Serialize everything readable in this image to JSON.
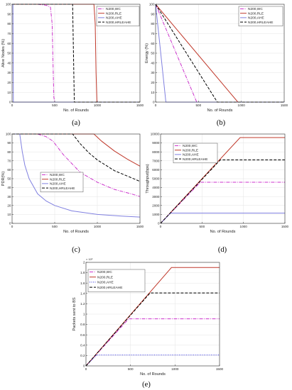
{
  "chart_data": [
    {
      "id": "a",
      "caption": "(a)",
      "type": "line",
      "xlabel": "No. of Rounds",
      "ylabel": "Alive Nodes (%)",
      "xlim": [
        0,
        1500
      ],
      "ylim": [
        0,
        100
      ],
      "xticks": [
        0,
        500,
        1000,
        1500
      ],
      "yticks": [
        0,
        10,
        20,
        30,
        40,
        50,
        60,
        70,
        80,
        90,
        100
      ],
      "legend_position": "top-right",
      "series": [
        {
          "name": "N200,WC",
          "color": "#cc33cc",
          "dash": "5,1.5,1,1.5",
          "points": [
            [
              0,
              100
            ],
            [
              300,
              100
            ],
            [
              400,
              99
            ],
            [
              450,
              97
            ],
            [
              470,
              80
            ],
            [
              480,
              40
            ],
            [
              490,
              5
            ],
            [
              500,
              0
            ],
            [
              1500,
              0
            ]
          ]
        },
        {
          "name": "N200,RLE",
          "color": "#c0392b",
          "dash": "",
          "points": [
            [
              0,
              100
            ],
            [
              960,
              100
            ],
            [
              975,
              80
            ],
            [
              985,
              30
            ],
            [
              995,
              0
            ],
            [
              1500,
              0
            ]
          ]
        },
        {
          "name": "N200,AHE",
          "color": "#8080e0",
          "dash": "",
          "points": [
            [
              0,
              100
            ],
            [
              10,
              100
            ],
            [
              15,
              0
            ],
            [
              1500,
              0
            ]
          ]
        },
        {
          "name": "N200,HRLEAHE",
          "color": "#000000",
          "dash": "4,2",
          "points": [
            [
              0,
              100
            ],
            [
              710,
              100
            ],
            [
              720,
              50
            ],
            [
              730,
              0
            ],
            [
              1500,
              0
            ]
          ]
        }
      ]
    },
    {
      "id": "b",
      "caption": "(b)",
      "type": "line",
      "xlabel": "No. of Rounds",
      "ylabel": "Energy (%)",
      "xlim": [
        0,
        1500
      ],
      "ylim": [
        0,
        100
      ],
      "xticks": [
        0,
        500,
        1000,
        1500
      ],
      "yticks": [
        0,
        10,
        20,
        30,
        40,
        50,
        60,
        70,
        80,
        90,
        100
      ],
      "legend_position": "top-right",
      "series": [
        {
          "name": "N200,WC",
          "color": "#cc33cc",
          "dash": "5,1.5,1,1.5",
          "points": [
            [
              0,
              100
            ],
            [
              480,
              0
            ],
            [
              1500,
              0
            ]
          ]
        },
        {
          "name": "N200,RLE",
          "color": "#c0392b",
          "dash": "",
          "points": [
            [
              0,
              100
            ],
            [
              960,
              0
            ],
            [
              1500,
              0
            ]
          ]
        },
        {
          "name": "N200,AHE",
          "color": "#8080e0",
          "dash": "",
          "points": [
            [
              0,
              100
            ],
            [
              120,
              0
            ],
            [
              1500,
              0
            ]
          ]
        },
        {
          "name": "N200,HRLEAHE",
          "color": "#000000",
          "dash": "4,2",
          "points": [
            [
              0,
              100
            ],
            [
              720,
              0
            ],
            [
              1500,
              0
            ]
          ]
        }
      ]
    },
    {
      "id": "c",
      "caption": "(c)",
      "type": "line",
      "xlabel": "No. of Rounds",
      "ylabel": "PDR(%)",
      "xlim": [
        0,
        1500
      ],
      "ylim": [
        0,
        100
      ],
      "xticks": [
        0,
        500,
        1000,
        1500
      ],
      "yticks": [
        0,
        10,
        20,
        30,
        40,
        50,
        60,
        70,
        80,
        90,
        100
      ],
      "legend_position": "lower-left",
      "series": [
        {
          "name": "N200,WC",
          "color": "#cc33cc",
          "dash": "5,1.5,1,1.5",
          "points": [
            [
              0,
              100
            ],
            [
              300,
              100
            ],
            [
              400,
              97
            ],
            [
              480,
              92
            ],
            [
              600,
              77
            ],
            [
              800,
              57
            ],
            [
              1000,
              46
            ],
            [
              1200,
              38
            ],
            [
              1400,
              33
            ],
            [
              1500,
              30
            ]
          ]
        },
        {
          "name": "N200,RLE",
          "color": "#c0392b",
          "dash": "",
          "points": [
            [
              0,
              100
            ],
            [
              960,
              100
            ],
            [
              1050,
              92
            ],
            [
              1200,
              81
            ],
            [
              1350,
              72
            ],
            [
              1500,
              64
            ]
          ]
        },
        {
          "name": "N200,AHE",
          "color": "#8080e0",
          "dash": "",
          "points": [
            [
              0,
              100
            ],
            [
              90,
              100
            ],
            [
              120,
              80
            ],
            [
              150,
              65
            ],
            [
              200,
              50
            ],
            [
              300,
              33
            ],
            [
              400,
              25
            ],
            [
              500,
              20
            ],
            [
              700,
              14
            ],
            [
              1000,
              10
            ],
            [
              1300,
              8
            ],
            [
              1500,
              7
            ]
          ]
        },
        {
          "name": "N200,HRLEAHE",
          "color": "#000000",
          "dash": "4,2",
          "points": [
            [
              0,
              100
            ],
            [
              710,
              100
            ],
            [
              800,
              89
            ],
            [
              900,
              79
            ],
            [
              1000,
              71
            ],
            [
              1100,
              65
            ],
            [
              1200,
              59
            ],
            [
              1300,
              55
            ],
            [
              1400,
              51
            ],
            [
              1500,
              47
            ]
          ]
        }
      ]
    },
    {
      "id": "d",
      "caption": "(d)",
      "type": "line",
      "xlabel": "No. of Rounds",
      "ylabel": "Throughput(bps)",
      "xlim": [
        0,
        1500
      ],
      "ylim": [
        0,
        10000
      ],
      "xticks": [
        0,
        500,
        1000,
        1500
      ],
      "yticks": [
        0,
        1000,
        2000,
        3000,
        4000,
        5000,
        6000,
        7000,
        8000,
        9000,
        10000
      ],
      "legend_position": "top-left",
      "series": [
        {
          "name": "N200,WC",
          "color": "#cc33cc",
          "dash": "5,1.5,1,1.5",
          "points": [
            [
              0,
              0
            ],
            [
              480,
              4600
            ],
            [
              1500,
              4600
            ]
          ]
        },
        {
          "name": "N200,RLE",
          "color": "#c0392b",
          "dash": "",
          "points": [
            [
              0,
              0
            ],
            [
              960,
              9600
            ],
            [
              1500,
              9600
            ]
          ]
        },
        {
          "name": "N200,AHE",
          "color": "#8080e0",
          "dash": "",
          "points": [
            [
              0,
              0
            ],
            [
              120,
              1150
            ],
            [
              1500,
              1150
            ]
          ]
        },
        {
          "name": "N200,HRLEAHE",
          "color": "#000000",
          "dash": "4,2",
          "points": [
            [
              0,
              0
            ],
            [
              720,
              7100
            ],
            [
              1500,
              7100
            ]
          ]
        }
      ]
    },
    {
      "id": "e",
      "caption": "(e)",
      "type": "line",
      "xlabel": "No. of Rounds",
      "ylabel": "Packets sent to BS",
      "exponent_label": "× 10⁶",
      "xlim": [
        0,
        1500
      ],
      "ylim": [
        0,
        2
      ],
      "xticks": [
        0,
        500,
        1000,
        1500
      ],
      "yticks": [
        0,
        0.2,
        0.4,
        0.6,
        0.8,
        1,
        1.2,
        1.4,
        1.6,
        1.8,
        2
      ],
      "legend_position": "top-left",
      "series": [
        {
          "name": "N200,WC",
          "color": "#cc33cc",
          "dash": "5,1.5,1,1.5",
          "points": [
            [
              0,
              0
            ],
            [
              480,
              0.91
            ],
            [
              1500,
              0.91
            ]
          ]
        },
        {
          "name": "N200,RLE",
          "color": "#c0392b",
          "dash": "",
          "points": [
            [
              0,
              0
            ],
            [
              960,
              1.9
            ],
            [
              1500,
              1.9
            ]
          ]
        },
        {
          "name": "N200,AHE",
          "color": "#3333dd",
          "dash": "1,1.5",
          "points": [
            [
              0,
              0
            ],
            [
              120,
              0.21
            ],
            [
              1500,
              0.21
            ]
          ]
        },
        {
          "name": "N200,HRLEAHE",
          "color": "#000000",
          "dash": "4,2",
          "points": [
            [
              0,
              0
            ],
            [
              720,
              1.41
            ],
            [
              1500,
              1.41
            ]
          ]
        }
      ]
    }
  ]
}
